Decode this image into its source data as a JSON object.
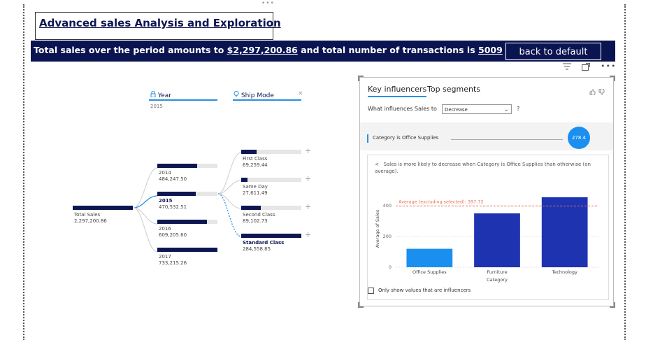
{
  "header": {
    "title": "Advanced sales Analysis and Exploration",
    "banner_prefix": "Total sales over the period amounts to ",
    "banner_total": "$2,297,200.86",
    "banner_mid": " and total number of transactions is ",
    "banner_count": "5009",
    "back_button": "back to default",
    "banner_color": "#0a1450"
  },
  "toolbar_icons": [
    "filter-icon",
    "focus-mode-icon",
    "more-options-icon"
  ],
  "decomp_tree": {
    "col1_label": "Year",
    "col1_value": "2015",
    "col2_label": "Ship Mode",
    "root": {
      "label": "Total Sales",
      "value": "2,297,200.86",
      "fraction": 1.0
    },
    "years": [
      {
        "label": "2014",
        "value": "484,247.50",
        "fraction": 0.66,
        "selected": false
      },
      {
        "label": "2015",
        "value": "470,532.51",
        "fraction": 0.64,
        "selected": true
      },
      {
        "label": "2016",
        "value": "609,205.60",
        "fraction": 0.83,
        "selected": false
      },
      {
        "label": "2017",
        "value": "733,215.26",
        "fraction": 1.0,
        "selected": false
      }
    ],
    "ship_modes": [
      {
        "label": "First Class",
        "value": "69,259.44",
        "fraction": 0.26,
        "bold": false
      },
      {
        "label": "Same Day",
        "value": "27,611.49",
        "fraction": 0.1,
        "bold": false
      },
      {
        "label": "Second Class",
        "value": "89,102.73",
        "fraction": 0.33,
        "bold": false
      },
      {
        "label": "Standard Class",
        "value": "284,558.85",
        "fraction": 1.0,
        "bold": true
      }
    ]
  },
  "key_influencers": {
    "tab_active": "Key influencers",
    "tab_other": "Top segments",
    "question": "What influences Sales to",
    "dropdown_value": "Decrease",
    "help": "?",
    "influencer_label": "Category is Office Supplies",
    "influencer_value": "278.4",
    "back_glyph": "<",
    "explanation": "Sales is more likely to decrease when Category is Office Supplies than otherwise (on average).",
    "average_label": "Average (excluding selected): 397.72",
    "checkbox_label": "Only show values that are influencers",
    "accent": "#1a8ff0",
    "bar_dark": "#1e33b0"
  },
  "chart_data": {
    "type": "bar",
    "categories": [
      "Office Supplies",
      "Furniture",
      "Technology"
    ],
    "values": [
      120,
      350,
      455
    ],
    "xlabel": "Category",
    "ylabel": "Average of Sales",
    "yticks": [
      0,
      200,
      400
    ],
    "ylim": [
      0,
      500
    ],
    "reference_line": 397.72
  }
}
